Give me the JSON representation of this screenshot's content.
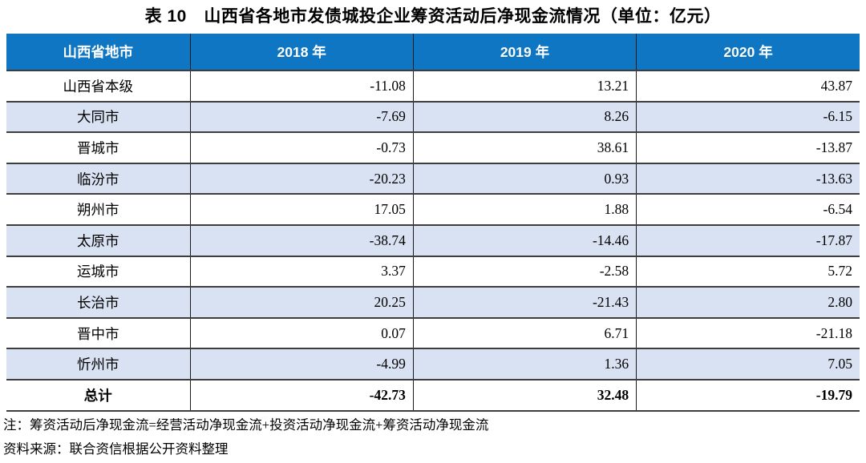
{
  "title": "表 10　山西省各地市发债城投企业筹资活动后净现金流情况（单位：亿元）",
  "table": {
    "headers": [
      "山西省地市",
      "2018 年",
      "2019 年",
      "2020 年"
    ],
    "rows": [
      {
        "region": "山西省本级",
        "values": [
          "-11.08",
          "13.21",
          "43.87"
        ],
        "band": false,
        "bold": false
      },
      {
        "region": "大同市",
        "values": [
          "-7.69",
          "8.26",
          "-6.15"
        ],
        "band": true,
        "bold": false
      },
      {
        "region": "晋城市",
        "values": [
          "-0.73",
          "38.61",
          "-13.87"
        ],
        "band": false,
        "bold": false
      },
      {
        "region": "临汾市",
        "values": [
          "-20.23",
          "0.93",
          "-13.63"
        ],
        "band": true,
        "bold": false
      },
      {
        "region": "朔州市",
        "values": [
          "17.05",
          "1.88",
          "-6.54"
        ],
        "band": false,
        "bold": false
      },
      {
        "region": "太原市",
        "values": [
          "-38.74",
          "-14.46",
          "-17.87"
        ],
        "band": true,
        "bold": false
      },
      {
        "region": "运城市",
        "values": [
          "3.37",
          "-2.58",
          "5.72"
        ],
        "band": false,
        "bold": false
      },
      {
        "region": "长治市",
        "values": [
          "20.25",
          "-21.43",
          "2.80"
        ],
        "band": true,
        "bold": false
      },
      {
        "region": "晋中市",
        "values": [
          "0.07",
          "6.71",
          "-21.18"
        ],
        "band": false,
        "bold": false
      },
      {
        "region": "忻州市",
        "values": [
          "-4.99",
          "1.36",
          "7.05"
        ],
        "band": true,
        "bold": false
      },
      {
        "region": "总计",
        "values": [
          "-42.73",
          "32.48",
          "-19.79"
        ],
        "band": false,
        "bold": true
      }
    ]
  },
  "notes": [
    "注：筹资活动后净现金流=经营活动净现金流+投资活动净现金流+筹资活动净现金流",
    "资料来源：联合资信根据公开资料整理"
  ],
  "colors": {
    "header_bg": "#0E76C2",
    "band_bg": "#D9E2F2",
    "row_line": "#3d3d3d",
    "col_line": "#1a1a1a",
    "header_text": "#ffffff",
    "body_text": "#000000"
  }
}
